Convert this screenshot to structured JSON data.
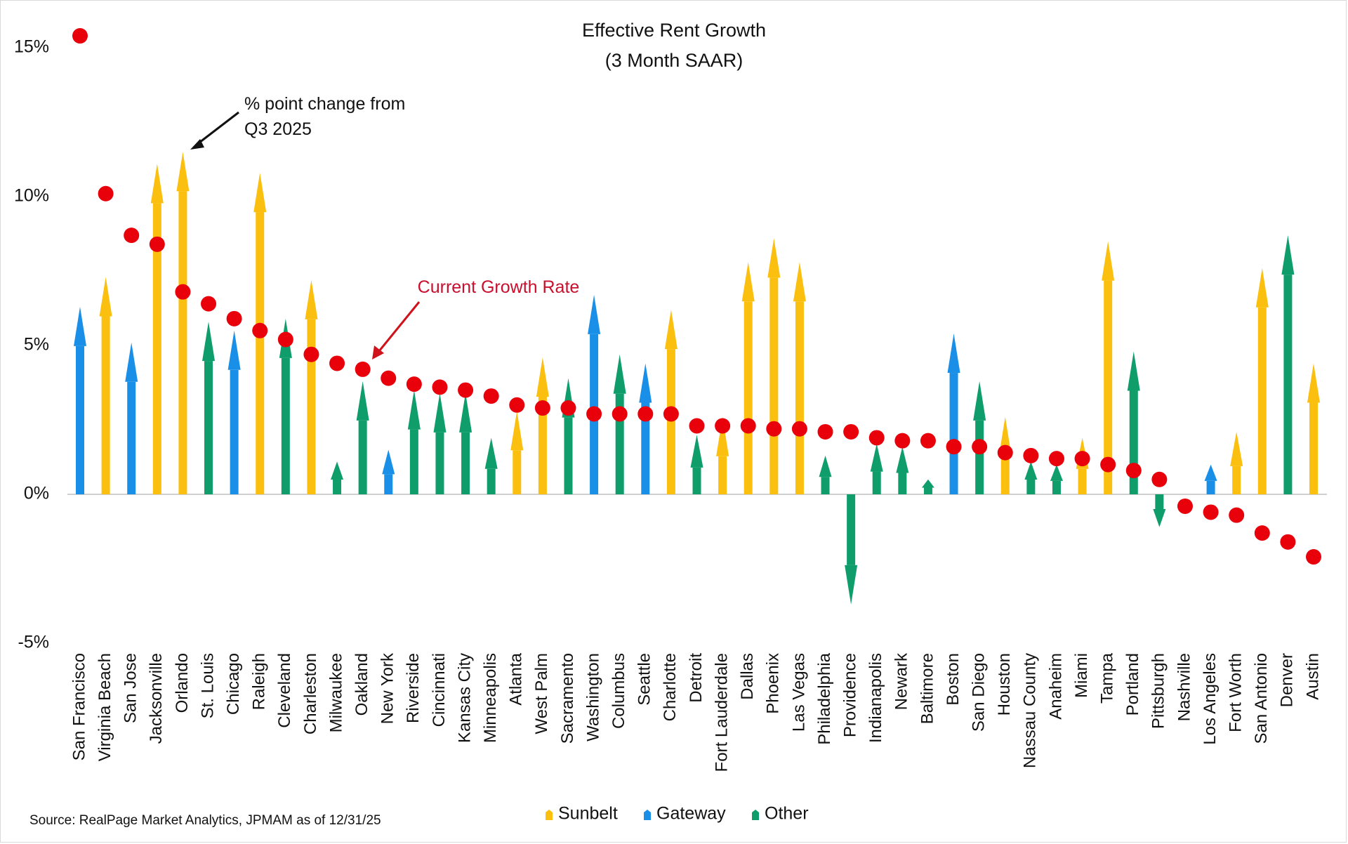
{
  "chart_data": {
    "type": "scatter",
    "title": "Effective Rent Growth",
    "subtitle": "(3 Month SAAR)",
    "xlabel": "",
    "ylabel": "",
    "ylim": [
      -5,
      16
    ],
    "yticks": [
      15,
      10,
      5,
      0,
      -5
    ],
    "ytick_labels": [
      "15%",
      "10%",
      "5%",
      "0%",
      "-5%"
    ],
    "grid": false,
    "legend_position": "bottom-center",
    "colors": {
      "Sunbelt": "#fbbf0f",
      "Gateway": "#1a8fe8",
      "Other": "#0f9d6b",
      "dot": "#e8000b",
      "annotation_red": "#c8102e"
    },
    "legend": [
      "Sunbelt",
      "Gateway",
      "Other"
    ],
    "annotations": [
      {
        "text_lines": [
          "% point change from",
          "Q3 2025"
        ],
        "color": "black",
        "points_to": "Orlando change arrow"
      },
      {
        "text_lines": [
          "Current Growth Rate"
        ],
        "color": "red",
        "points_to": "Oakland growth dot"
      }
    ],
    "source": "Source: RealPage Market Analytics, JPMAM as of 12/31/25",
    "series_description": {
      "current_growth": "Current 3-month SAAR effective rent growth (%), red dots",
      "change": "Percentage point change from Q3 2025, colored arrows by region group"
    },
    "categories": [
      "San Francisco",
      "Virginia Beach",
      "San Jose",
      "Jacksonville",
      "Orlando",
      "St. Louis",
      "Chicago",
      "Raleigh",
      "Cleveland",
      "Charleston",
      "Milwaukee",
      "Oakland",
      "New York",
      "Riverside",
      "Cincinnati",
      "Kansas City",
      "Minneapolis",
      "Atlanta",
      "West Palm",
      "Sacramento",
      "Washington",
      "Columbus",
      "Seattle",
      "Charlotte",
      "Detroit",
      "Fort Lauderdale",
      "Dallas",
      "Phoenix",
      "Las Vegas",
      "Philadelphia",
      "Providence",
      "Indianapolis",
      "Newark",
      "Baltimore",
      "Boston",
      "San Diego",
      "Houston",
      "Nassau County",
      "Anaheim",
      "Miami",
      "Tampa",
      "Portland",
      "Pittsburgh",
      "Nashville",
      "Los Angeles",
      "Fort Worth",
      "San Antonio",
      "Denver",
      "Austin"
    ],
    "groups": [
      "Gateway",
      "Sunbelt",
      "Gateway",
      "Sunbelt",
      "Sunbelt",
      "Other",
      "Gateway",
      "Sunbelt",
      "Other",
      "Sunbelt",
      "Other",
      "Other",
      "Gateway",
      "Other",
      "Other",
      "Other",
      "Other",
      "Sunbelt",
      "Sunbelt",
      "Other",
      "Gateway",
      "Other",
      "Gateway",
      "Sunbelt",
      "Other",
      "Sunbelt",
      "Sunbelt",
      "Sunbelt",
      "Sunbelt",
      "Other",
      "Other",
      "Other",
      "Other",
      "Other",
      "Gateway",
      "Other",
      "Sunbelt",
      "Other",
      "Other",
      "Sunbelt",
      "Sunbelt",
      "Other",
      "Other",
      "Other",
      "Gateway",
      "Sunbelt",
      "Sunbelt",
      "Other",
      "Sunbelt"
    ],
    "series": [
      {
        "name": "Current Growth Rate",
        "values": [
          15.4,
          10.1,
          8.7,
          8.4,
          6.8,
          6.4,
          5.9,
          5.5,
          5.2,
          4.7,
          4.4,
          4.2,
          3.9,
          3.7,
          3.6,
          3.5,
          3.3,
          3.0,
          2.9,
          2.9,
          2.7,
          2.7,
          2.7,
          2.7,
          2.3,
          2.3,
          2.3,
          2.2,
          2.2,
          2.1,
          2.1,
          1.9,
          1.8,
          1.8,
          1.6,
          1.6,
          1.4,
          1.3,
          1.2,
          1.2,
          1.0,
          0.8,
          0.5,
          -0.4,
          -0.6,
          -0.7,
          -1.3,
          -1.6,
          -2.1
        ]
      },
      {
        "name": "% point change from Q3 2025",
        "values": [
          6.3,
          7.3,
          5.1,
          11.1,
          11.5,
          5.8,
          5.5,
          10.8,
          5.9,
          7.2,
          1.1,
          3.8,
          1.5,
          3.5,
          3.4,
          3.4,
          1.9,
          2.8,
          4.6,
          3.9,
          6.7,
          4.7,
          4.4,
          6.2,
          2.0,
          2.6,
          7.8,
          8.6,
          7.8,
          1.3,
          -3.7,
          1.7,
          1.6,
          0.5,
          5.4,
          3.8,
          2.6,
          1.1,
          1.0,
          1.9,
          8.5,
          4.8,
          -1.1,
          0.0,
          1.0,
          2.1,
          7.6,
          8.7,
          4.4
        ]
      }
    ]
  }
}
